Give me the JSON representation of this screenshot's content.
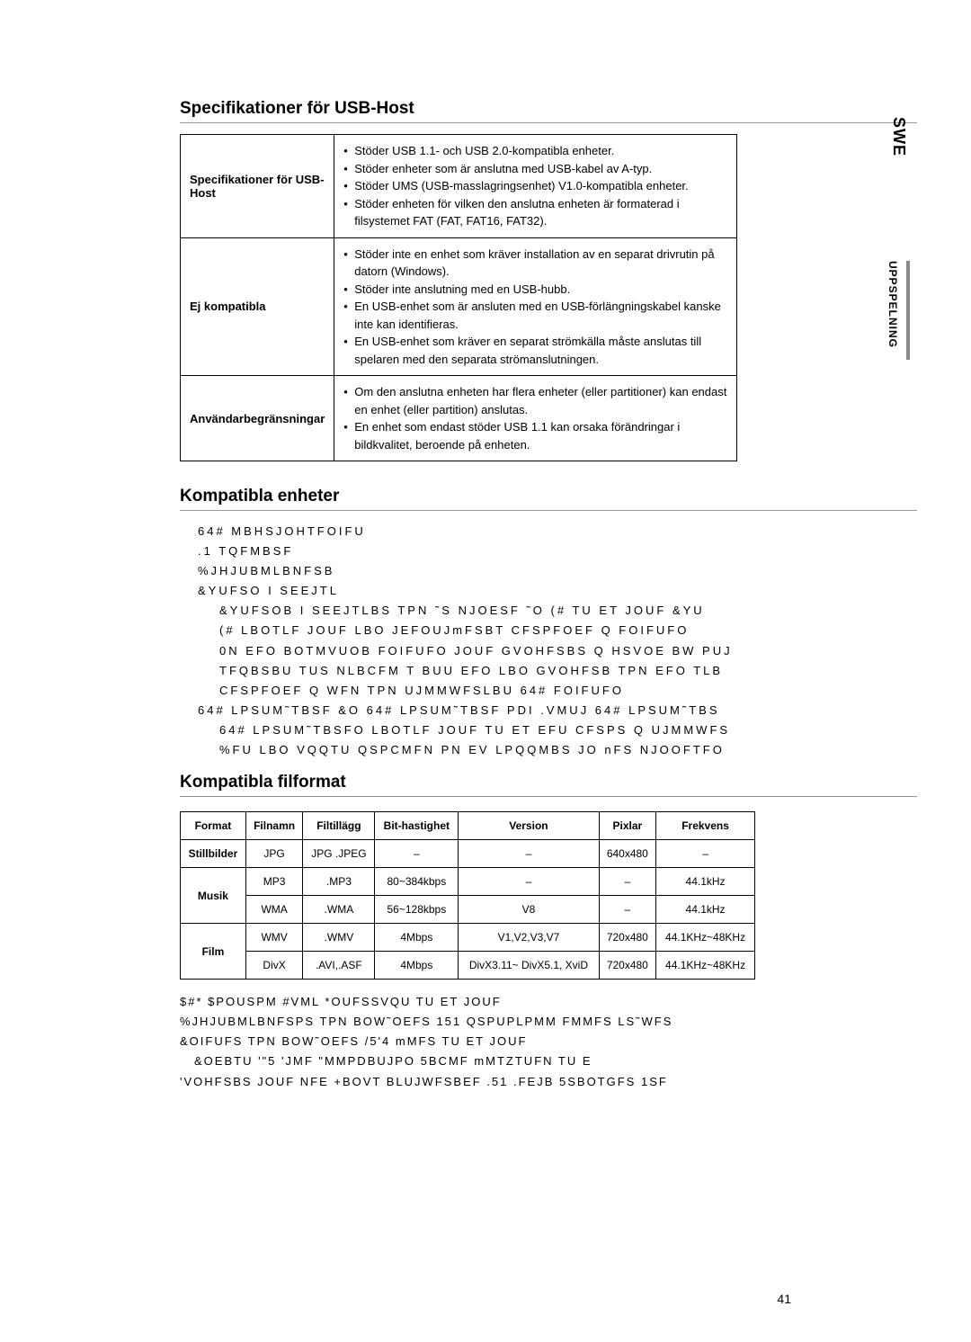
{
  "side": {
    "swe": "SWE",
    "uppspelning": "UPPSPELNING"
  },
  "section1": {
    "title": "Specifikationer för USB-Host",
    "rows": [
      {
        "label": "Specifikationer för USB-Host",
        "items": [
          "Stöder USB 1.1- och USB 2.0-kompatibla enheter.",
          "Stöder enheter som är anslutna med USB-kabel av A-typ.",
          "Stöder UMS (USB-masslagringsenhet) V1.0-kompatibla enheter.",
          "Stöder enheten för vilken den anslutna enheten är formaterad i filsystemet FAT (FAT, FAT16, FAT32)."
        ]
      },
      {
        "label": "Ej kompatibla",
        "items": [
          "Stöder inte en enhet som kräver installation av en separat drivrutin på datorn (Windows).",
          "Stöder inte anslutning med en USB-hubb.",
          "En USB-enhet som är ansluten med en USB-förlängningskabel kanske inte kan identifieras.",
          "En USB-enhet som kräver en separat strömkälla måste anslutas till spelaren med den separata strömanslutningen."
        ]
      },
      {
        "label": "Användarbegränsningar",
        "items": [
          "Om den anslutna enheten har flera enheter (eller partitioner) kan endast en enhet (eller partition) anslutas.",
          "En enhet som endast stöder USB 1.1 kan orsaka förändringar i bildkvalitet, beroende på enheten."
        ]
      }
    ]
  },
  "section2": {
    "title": "Kompatibla enheter",
    "lines": [
      "64# MBHSJOHTFOIFU",
      ".1  TQFMBSF",
      "%JHJUBMLBNFSB",
      "&YUFSO I SEEJTL",
      "  &YUFSOB I SEEJTLBS TPN ˜S NJOESF ˜O   (# TU ET JOUF  &YU",
      "  (# LBOTLF JOUF LBO JEFOUJmFSBT  CFSPFOEF Q  FOIFUFO",
      "  0N EFO BOTMVUOB FOIFUFO JOUF GVOHFSBS Q  HSVOE BW PUJ",
      "  TFQBSBU TUS NLBCFM T  BUU EFO LBO GVOHFSB TPN EFO TLB",
      "  CFSPFOEF Q  WFN TPN UJMMWFSLBU 64# FOIFUFO",
      "64# LPSUM˜TBSF  &O 64# LPSUM˜TBSF PDI .VMUJ 64# LPSUM˜TBS",
      "  64# LPSUM˜TBSFO LBOTLF JOUF TU ET  EFU CFSPS Q  UJMMWFS",
      "   %FU LBO VQQTU  QSPCMFN PN EV LPQQMBS JO nFS NJOOFTFO"
    ]
  },
  "section3": {
    "title": "Kompatibla filformat",
    "headers": [
      "Format",
      "Filnamn",
      "Filtillägg",
      "Bit-hastighet",
      "Version",
      "Pixlar",
      "Frekvens"
    ],
    "rows": [
      {
        "label": "Stillbilder",
        "span": 1,
        "cells": [
          "JPG",
          "JPG .JPEG",
          "–",
          "–",
          "640x480",
          "–"
        ]
      },
      {
        "label": "Musik",
        "span": 2,
        "sub": [
          [
            "MP3",
            ".MP3",
            "80~384kbps",
            "–",
            "–",
            "44.1kHz"
          ],
          [
            "WMA",
            ".WMA",
            "56~128kbps",
            "V8",
            "–",
            "44.1kHz"
          ]
        ]
      },
      {
        "label": "Film",
        "span": 2,
        "sub": [
          [
            "WMV",
            ".WMV",
            "4Mbps",
            "V1,V2,V3,V7",
            "720x480",
            "44.1KHz~48KHz"
          ],
          [
            "DivX",
            ".AVI,.ASF",
            "4Mbps",
            "DivX3.11~ DivX5.1, XviD",
            "720x480",
            "44.1KHz~48KHz"
          ]
        ]
      }
    ]
  },
  "footer": {
    "lines": [
      "$#*  $POUSPM #VML *OUFSSVQU  TU ET JOUF",
      "%JHJUBMLBNFSPS TPN BOW˜OEFS 151 QSPUPLPMM FMMFS LS˜WFS",
      "&OIFUFS TPN BOW˜OEFS /5'4 mMFS TU ET JOUF",
      "  &OEBTU '\"5     'JMF \"MMPDBUJPO 5BCMF     mMTZTUFN TU E",
      "'VOHFSBS JOUF NFE +BOVT BLUJWFSBEF .51 .FEJB 5SBOTGFS 1SF"
    ]
  },
  "page": "41"
}
